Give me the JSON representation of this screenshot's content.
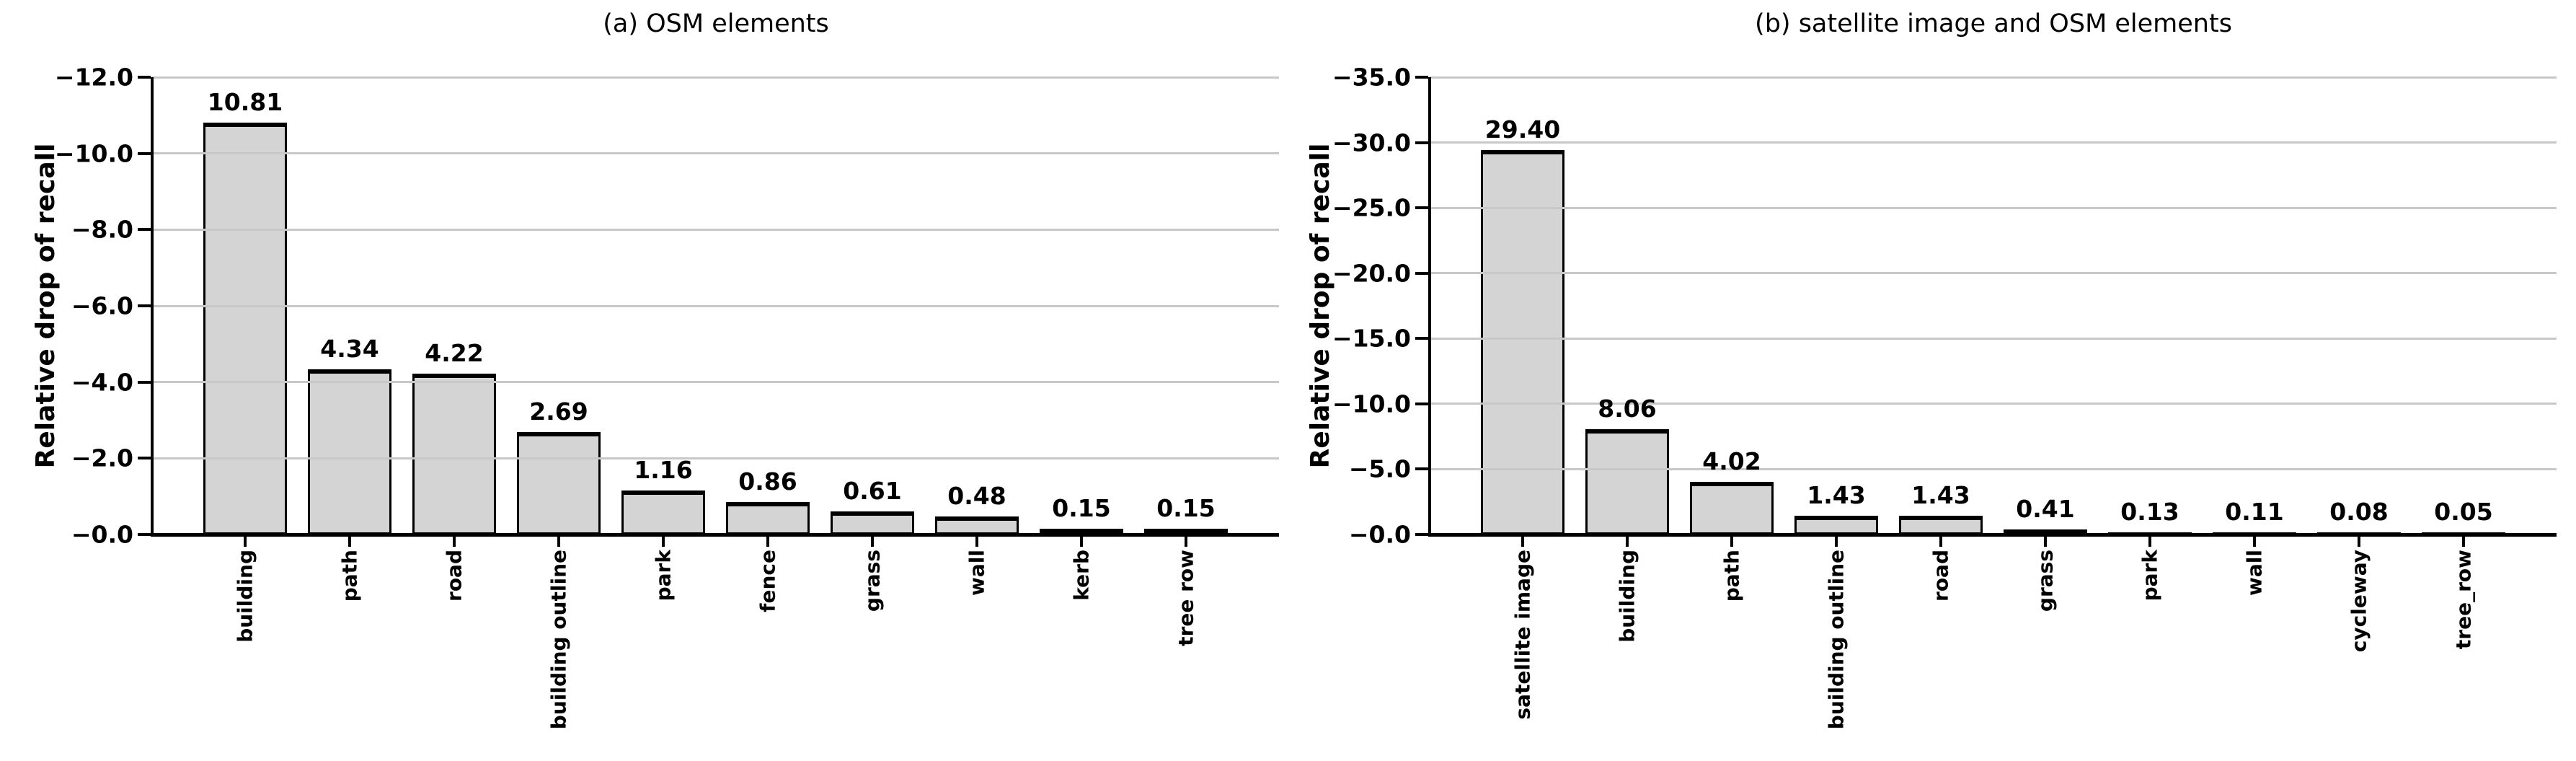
{
  "figure": {
    "background": "#ffffff",
    "bar_fill": "#d4d4d4",
    "bar_edge": "#000000",
    "grid_color": "#c8c8c8",
    "axis_color": "#000000",
    "text_color": "#000000"
  },
  "chart_data": [
    {
      "type": "bar",
      "title": "(a) OSM elements",
      "xlabel": "",
      "ylabel": "Relative drop of recall",
      "categories": [
        "building",
        "path",
        "road",
        "building outline",
        "park",
        "fence",
        "grass",
        "wall",
        "kerb",
        "tree row"
      ],
      "values": [
        10.81,
        4.34,
        4.22,
        2.69,
        1.16,
        0.86,
        0.61,
        0.48,
        0.15,
        0.15
      ],
      "value_labels": [
        "10.81",
        "4.34",
        "4.22",
        "2.69",
        "1.16",
        "0.86",
        "0.61",
        "0.48",
        "0.15",
        "0.15"
      ],
      "ytick_values": [
        0,
        2,
        4,
        6,
        8,
        10,
        12
      ],
      "ytick_labels": [
        "−0.0",
        "−2.0",
        "−4.0",
        "−6.0",
        "−8.0",
        "−10.0",
        "−12.0"
      ],
      "ylim": [
        0,
        12
      ],
      "y_axis_direction": "negative values increase upward",
      "grid": "horizontal",
      "legend": "none"
    },
    {
      "type": "bar",
      "title": "(b) satellite image and OSM elements",
      "xlabel": "",
      "ylabel": "Relative drop of recall",
      "categories": [
        "satellite image",
        "building",
        "path",
        "building outline",
        "road",
        "grass",
        "park",
        "wall",
        "cycleway",
        "tree_row"
      ],
      "values": [
        29.4,
        8.06,
        4.02,
        1.43,
        1.43,
        0.41,
        0.13,
        0.11,
        0.08,
        0.05
      ],
      "value_labels": [
        "29.40",
        "8.06",
        "4.02",
        "1.43",
        "1.43",
        "0.41",
        "0.13",
        "0.11",
        "0.08",
        "0.05"
      ],
      "ytick_values": [
        0,
        5,
        10,
        15,
        20,
        25,
        30,
        35
      ],
      "ytick_labels": [
        "−0.0",
        "−5.0",
        "−10.0",
        "−15.0",
        "−20.0",
        "−25.0",
        "−30.0",
        "−35.0"
      ],
      "ylim": [
        0,
        35
      ],
      "y_axis_direction": "negative values increase upward",
      "grid": "horizontal",
      "legend": "none"
    }
  ]
}
